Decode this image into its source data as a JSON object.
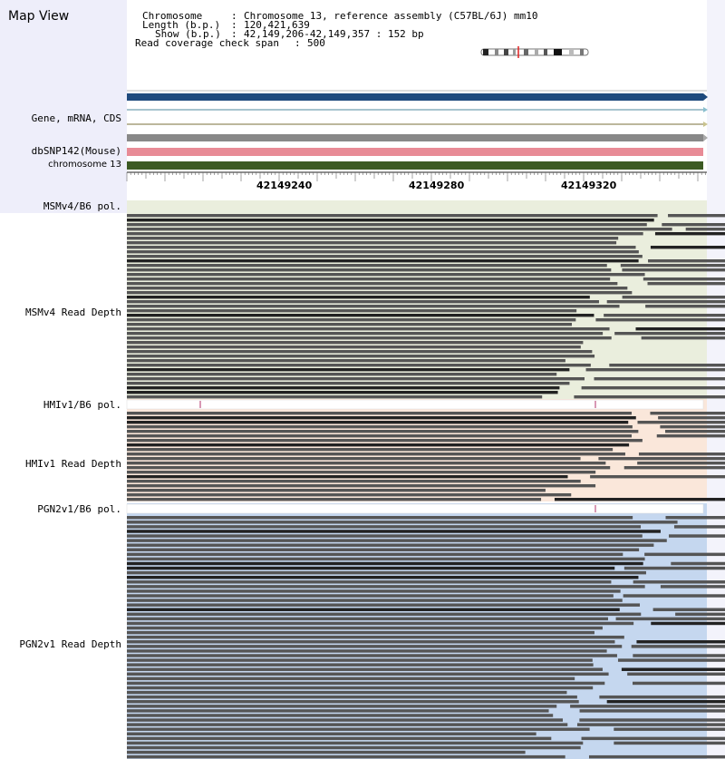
{
  "map_title": "Map View",
  "info": {
    "chromosome_key": "Chromosome",
    "chromosome_value": "Chromosome 13, reference assembly (C57BL/6J) mm10",
    "length_key": "Length (b.p.)",
    "length_value": "120,421,639",
    "show_key": "Show (b.p.)",
    "show_value": "42,149,206-42,149,357 : 152 bp",
    "coverage_key": "Read coverage check span",
    "coverage_value": "500"
  },
  "tracks": {
    "gene": "Gene, mRNA, CDS",
    "dbsnp": "dbSNP142(Mouse)",
    "chromosome": "chromosome 13"
  },
  "ruler": [
    "42149240",
    "42149280",
    "42149320"
  ],
  "strains": [
    {
      "pol_label": "MSMv4/B6 pol.",
      "depth_label": "MSMv4 Read Depth",
      "bg": "#eaeedd"
    },
    {
      "pol_label": "HMIv1/B6 pol.",
      "depth_label": "HMIv1 Read Depth",
      "bg": "#fae7da"
    },
    {
      "pol_label": "PGN2v1/B6 pol.",
      "depth_label": "PGN2v1 Read Depth",
      "bg": "#c5d7ef"
    }
  ],
  "colors": {
    "gene_bar": "#1e4a7d",
    "snp_bar": "#e88b96",
    "chrom_bar": "#3c5a23",
    "read": "#555555",
    "variant_tick": "#b0306a"
  }
}
